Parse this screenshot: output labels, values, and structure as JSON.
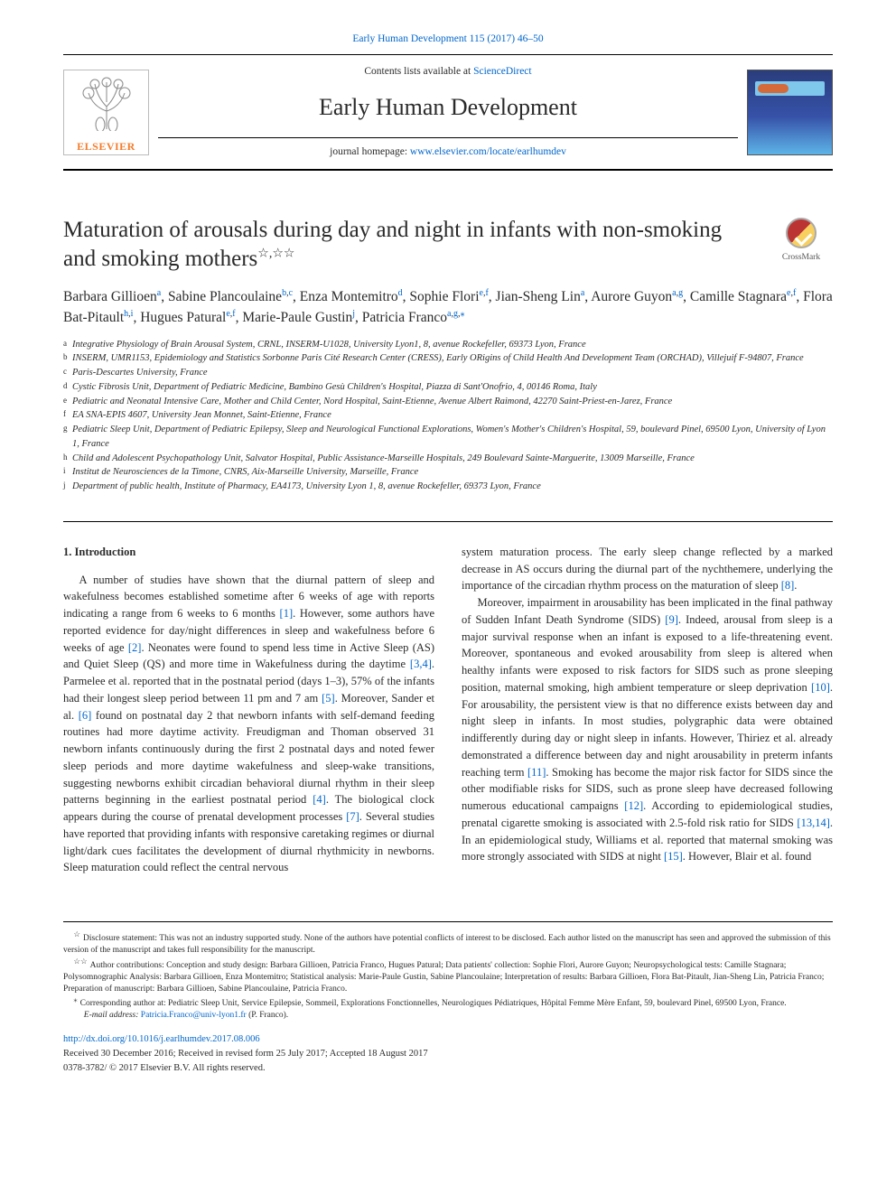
{
  "header": {
    "full_citation": "Early Human Development 115 (2017) 46–50",
    "contents_prefix": "Contents lists available at ",
    "contents_link": "ScienceDirect",
    "journal_name": "Early Human Development",
    "homepage_prefix": "journal homepage: ",
    "homepage_link": "www.elsevier.com/locate/earlhumdev",
    "elsevier_label": "ELSEVIER"
  },
  "article": {
    "title": "Maturation of arousals during day and night in infants with non-smoking and smoking mothers",
    "title_marks": "☆,☆☆",
    "crossmark": "CrossMark"
  },
  "authors": [
    {
      "name": "Barbara Gillioen",
      "aff": "a"
    },
    {
      "name": "Sabine Plancoulaine",
      "aff": "b,c"
    },
    {
      "name": "Enza Montemitro",
      "aff": "d"
    },
    {
      "name": "Sophie Flori",
      "aff": "e,f"
    },
    {
      "name": "Jian-Sheng Lin",
      "aff": "a"
    },
    {
      "name": "Aurore Guyon",
      "aff": "a,g"
    },
    {
      "name": "Camille Stagnara",
      "aff": "e,f"
    },
    {
      "name": "Flora Bat-Pitault",
      "aff": "h,i"
    },
    {
      "name": "Hugues Patural",
      "aff": "e,f"
    },
    {
      "name": "Marie-Paule Gustin",
      "aff": "j"
    },
    {
      "name": "Patricia Franco",
      "aff": "a,g,",
      "corr": true
    }
  ],
  "affiliations": [
    {
      "sup": "a",
      "text": "Integrative Physiology of Brain Arousal System, CRNL, INSERM-U1028, University Lyon1, 8, avenue Rockefeller, 69373 Lyon, France"
    },
    {
      "sup": "b",
      "text": "INSERM, UMR1153, Epidemiology and Statistics Sorbonne Paris Cité Research Center (CRESS), Early ORigins of Child Health And Development Team (ORCHAD), Villejuif F-94807, France"
    },
    {
      "sup": "c",
      "text": "Paris-Descartes University, France"
    },
    {
      "sup": "d",
      "text": "Cystic Fibrosis Unit, Department of Pediatric Medicine, Bambino Gesù Children's Hospital, Piazza di Sant'Onofrio, 4, 00146 Roma, Italy"
    },
    {
      "sup": "e",
      "text": "Pediatric and Neonatal Intensive Care, Mother and Child Center, Nord Hospital, Saint-Etienne, Avenue Albert Raimond, 42270 Saint-Priest-en-Jarez, France"
    },
    {
      "sup": "f",
      "text": "EA SNA-EPIS 4607, University Jean Monnet, Saint-Etienne, France"
    },
    {
      "sup": "g",
      "text": "Pediatric Sleep Unit, Department of Pediatric Epilepsy, Sleep and Neurological Functional Explorations, Women's Mother's Children's Hospital, 59, boulevard Pinel, 69500 Lyon, University of Lyon 1, France"
    },
    {
      "sup": "h",
      "text": "Child and Adolescent Psychopathology Unit, Salvator Hospital, Public Assistance-Marseille Hospitals, 249 Boulevard Sainte-Marguerite, 13009 Marseille, France"
    },
    {
      "sup": "i",
      "text": "Institut de Neurosciences de la Timone, CNRS, Aix-Marseille University, Marseille, France"
    },
    {
      "sup": "j",
      "text": "Department of public health, Institute of Pharmacy, EA4173, University Lyon 1, 8, avenue Rockefeller, 69373 Lyon, France"
    }
  ],
  "body": {
    "section_number": "1.",
    "section_title": "Introduction",
    "col1_para": "A number of studies have shown that the diurnal pattern of sleep and wakefulness becomes established sometime after 6 weeks of age with reports indicating a range from 6 weeks to 6 months [1]. However, some authors have reported evidence for day/night differences in sleep and wakefulness before 6 weeks of age [2]. Neonates were found to spend less time in Active Sleep (AS) and Quiet Sleep (QS) and more time in Wakefulness during the daytime [3,4]. Parmelee et al. reported that in the postnatal period (days 1–3), 57% of the infants had their longest sleep period between 11 pm and 7 am [5]. Moreover, Sander et al. [6] found on postnatal day 2 that newborn infants with self-demand feeding routines had more daytime activity. Freudigman and Thoman observed 31 newborn infants continuously during the first 2 postnatal days and noted fewer sleep periods and more daytime wakefulness and sleep-wake transitions, suggesting newborns exhibit circadian behavioral diurnal rhythm in their sleep patterns beginning in the earliest postnatal period [4]. The biological clock appears during the course of prenatal development processes [7]. Several studies have reported that providing infants with responsive caretaking regimes or diurnal light/dark cues facilitates the development of diurnal rhythmicity in newborns. Sleep maturation could reflect the central nervous",
    "col2_para1": "system maturation process. The early sleep change reflected by a marked decrease in AS occurs during the diurnal part of the nychthemere, underlying the importance of the circadian rhythm process on the maturation of sleep [8].",
    "col2_para2": "Moreover, impairment in arousability has been implicated in the final pathway of Sudden Infant Death Syndrome (SIDS) [9]. Indeed, arousal from sleep is a major survival response when an infant is exposed to a life-threatening event. Moreover, spontaneous and evoked arousability from sleep is altered when healthy infants were exposed to risk factors for SIDS such as prone sleeping position, maternal smoking, high ambient temperature or sleep deprivation [10]. For arousability, the persistent view is that no difference exists between day and night sleep in infants. In most studies, polygraphic data were obtained indifferently during day or night sleep in infants. However, Thiriez et al. already demonstrated a difference between day and night arousability in preterm infants reaching term [11]. Smoking has become the major risk factor for SIDS since the other modifiable risks for SIDS, such as prone sleep have decreased following numerous educational campaigns [12]. According to epidemiological studies, prenatal cigarette smoking is associated with 2.5-fold risk ratio for SIDS [13,14]. In an epidemiological study, Williams et al. reported that maternal smoking was more strongly associated with SIDS at night [15]. However, Blair et al. found",
    "refs": {
      "r1": "[1]",
      "r2": "[2]",
      "r34": "[3,4]",
      "r5": "[5]",
      "r6": "[6]",
      "r4": "[4]",
      "r7": "[7]",
      "r8": "[8]",
      "r9": "[9]",
      "r10": "[10]",
      "r11": "[11]",
      "r12": "[12]",
      "r1314": "[13,14]",
      "r15": "[15]"
    }
  },
  "footnotes": {
    "star1_mark": "☆",
    "star1": "Disclosure statement: This was not an industry supported study. None of the authors have potential conflicts of interest to be disclosed. Each author listed on the manuscript has seen and approved the submission of this version of the manuscript and takes full responsibility for the manuscript.",
    "star2_mark": "☆☆",
    "star2": "Author contributions: Conception and study design: Barbara Gillioen, Patricia Franco, Hugues Patural; Data patients' collection: Sophie Flori, Aurore Guyon; Neuropsychological tests: Camille Stagnara; Polysomnographic Analysis: Barbara Gillioen, Enza Montemitro; Statistical analysis: Marie-Paule Gustin, Sabine Plancoulaine; Interpretation of results: Barbara Gillioen, Flora Bat-Pitault, Jian-Sheng Lin, Patricia Franco; Preparation of manuscript: Barbara Gillioen, Sabine Plancoulaine, Patricia Franco.",
    "corr_mark": "⁎",
    "corr": "Corresponding author at: Pediatric Sleep Unit, Service Epilepsie, Sommeil, Explorations Fonctionnelles, Neurologiques Pédiatriques, Hôpital Femme Mère Enfant, 59, boulevard Pinel, 69500 Lyon, France.",
    "email_label": "E-mail address: ",
    "email": "Patricia.Franco@univ-lyon1.fr",
    "email_who": " (P. Franco)."
  },
  "footer": {
    "doi": "http://dx.doi.org/10.1016/j.earlhumdev.2017.08.006",
    "received": "Received 30 December 2016; Received in revised form 25 July 2017; Accepted 18 August 2017",
    "copyright": "0378-3782/ © 2017 Elsevier B.V. All rights reserved."
  },
  "colors": {
    "link": "#0066cc",
    "elsevier_orange": "#f47c2b",
    "cover_top": "#2a3d7c",
    "cover_bottom": "#5db4e8"
  }
}
